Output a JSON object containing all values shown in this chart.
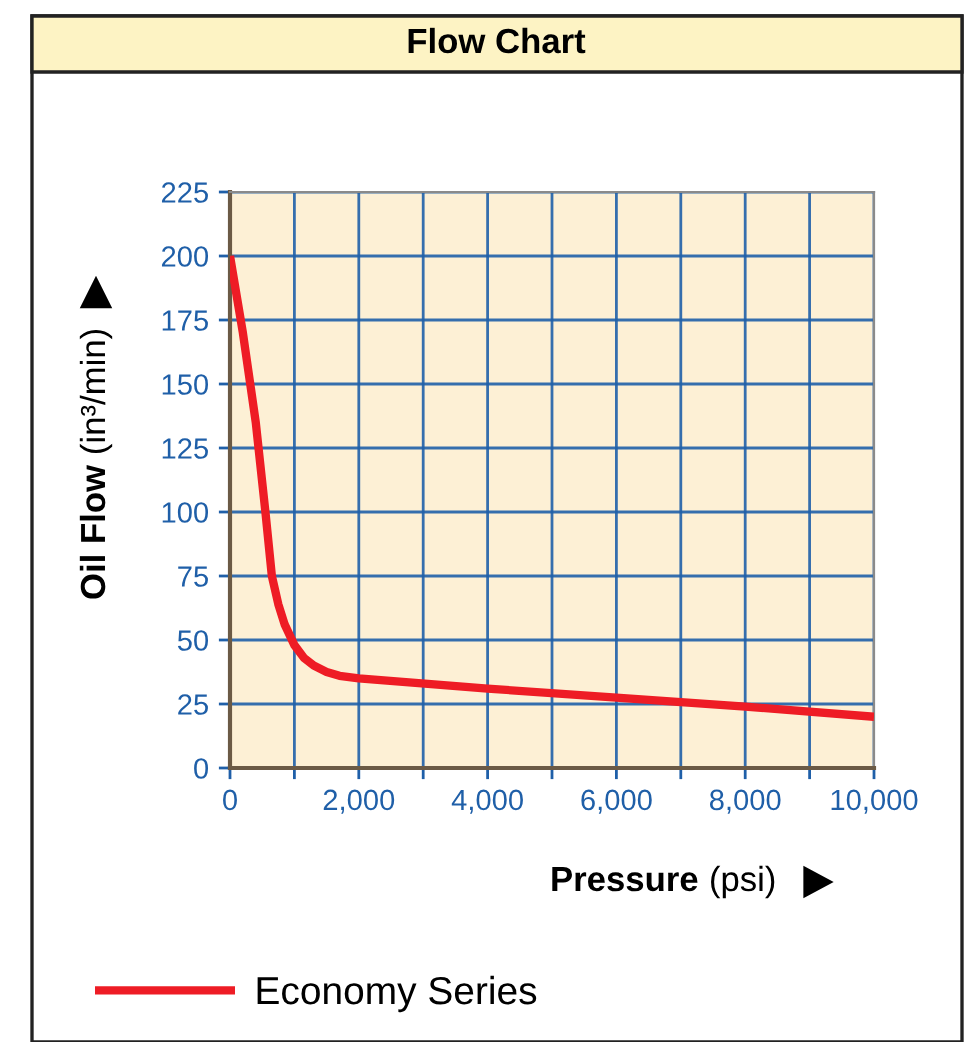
{
  "chart_data": {
    "type": "line",
    "title": "Flow Chart",
    "xlabel": "Pressure (psi)",
    "ylabel": "Oil Flow (in³/min)",
    "x": [
      0,
      200,
      400,
      550,
      650,
      750,
      850,
      1000,
      1150,
      1300,
      1500,
      1700,
      2000,
      4000,
      6000,
      8000,
      10000
    ],
    "series": [
      {
        "name": "Economy Series",
        "color": "#ee1c25",
        "values": [
          200,
          170,
          135,
          100,
          75,
          64,
          56,
          48,
          43,
          40,
          37.5,
          36,
          35,
          31,
          27.5,
          24,
          20
        ]
      }
    ],
    "xlim": [
      0,
      10000
    ],
    "ylim": [
      0,
      225
    ],
    "xticks": [
      0,
      {
        "value": 1000,
        "label": null
      },
      {
        "value": 2000,
        "label": "2,000"
      },
      {
        "value": 3000,
        "label": null
      },
      {
        "value": 4000,
        "label": "4,000"
      },
      {
        "value": 5000,
        "label": null
      },
      {
        "value": 6000,
        "label": "6,000"
      },
      {
        "value": 7000,
        "label": null
      },
      {
        "value": 8000,
        "label": "8,000"
      },
      {
        "value": 9000,
        "label": null
      },
      {
        "value": 10000,
        "label": "10,000"
      }
    ],
    "yticks": [
      0,
      25,
      50,
      75,
      100,
      125,
      150,
      175,
      200,
      225
    ],
    "grid": true,
    "legend": "bottom left",
    "line_style": "solid",
    "marker": "none"
  }
}
